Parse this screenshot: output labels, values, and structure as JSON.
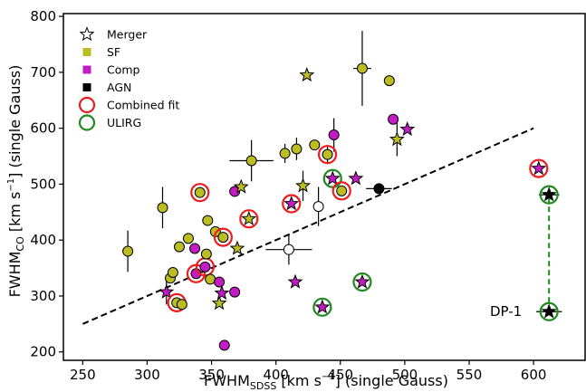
{
  "chart_data": {
    "type": "scatter",
    "xlabel_main": "FWHM",
    "xlabel_sub": "SDSS",
    "xlabel_unit_pre": " [km s",
    "xlabel_unit_exp": "−1",
    "xlabel_unit_post": "] (single Gauss)",
    "ylabel_main": "FWHM",
    "ylabel_sub": "CO",
    "ylabel_unit_pre": " [km s",
    "ylabel_unit_exp": "−1",
    "ylabel_unit_post": "] (single Gauss)",
    "xlim": [
      235,
      640
    ],
    "ylim": [
      185,
      805
    ],
    "xticks": [
      "250",
      "300",
      "350",
      "400",
      "450",
      "500",
      "550",
      "600"
    ],
    "yticks": [
      "200",
      "300",
      "400",
      "500",
      "600",
      "700",
      "800"
    ],
    "grid": false,
    "legend_position": "top-left",
    "legend": [
      {
        "label": "Merger",
        "marker": "star-open"
      },
      {
        "label": "SF",
        "marker": "square",
        "color": "#bcbd22"
      },
      {
        "label": "Comp",
        "marker": "square",
        "color": "#c51bc5"
      },
      {
        "label": "AGN",
        "marker": "square",
        "color": "#000000"
      },
      {
        "label": "Combined fit",
        "marker": "ring",
        "color": "#ee1c1c"
      },
      {
        "label": "ULIRG",
        "marker": "ring",
        "color": "#1f8a1f"
      }
    ],
    "colors": {
      "SF": "#bcbd22",
      "Comp": "#c51bc5",
      "AGN": "#000000",
      "combined": "#ee1c1c",
      "ulirg": "#1f8a1f",
      "open": "#ffffff"
    },
    "trend_line": {
      "x": [
        250,
        600
      ],
      "y": [
        250,
        600
      ],
      "style": "dashed"
    },
    "connector": {
      "x": 612,
      "y": [
        272,
        481
      ],
      "color": "#1f8a1f",
      "style": "dashed"
    },
    "annotation": {
      "text": "DP-1",
      "x": 612,
      "y": 272
    },
    "points": [
      {
        "x": 285,
        "y": 380,
        "cls": "SF",
        "m": "o",
        "xe": 0,
        "ye": 37
      },
      {
        "x": 312,
        "y": 458,
        "cls": "SF",
        "m": "o",
        "xe": 0,
        "ye": 37
      },
      {
        "x": 315,
        "y": 307,
        "cls": "Comp",
        "m": "*",
        "xe": 0,
        "ye": 22
      },
      {
        "x": 318,
        "y": 332,
        "cls": "SF",
        "m": "o",
        "xe": 0,
        "ye": 0
      },
      {
        "x": 320,
        "y": 342,
        "cls": "SF",
        "m": "o",
        "xe": 0,
        "ye": 0
      },
      {
        "x": 323,
        "y": 288,
        "cls": "SF",
        "m": "o",
        "xe": 0,
        "ye": 0,
        "ring": "combined"
      },
      {
        "x": 325,
        "y": 388,
        "cls": "SF",
        "m": "o",
        "xe": 0,
        "ye": 0
      },
      {
        "x": 327,
        "y": 285,
        "cls": "SF",
        "m": "o",
        "xe": 0,
        "ye": 0
      },
      {
        "x": 332,
        "y": 403,
        "cls": "SF",
        "m": "o",
        "xe": 0,
        "ye": 0
      },
      {
        "x": 337,
        "y": 385,
        "cls": "Comp",
        "m": "o",
        "xe": 0,
        "ye": 0
      },
      {
        "x": 338,
        "y": 340,
        "cls": "Comp",
        "m": "o",
        "xe": 0,
        "ye": 0,
        "ring": "combined"
      },
      {
        "x": 341,
        "y": 485,
        "cls": "SF",
        "m": "o",
        "xe": 0,
        "ye": 0,
        "ring": "combined"
      },
      {
        "x": 345,
        "y": 352,
        "cls": "Comp",
        "m": "o",
        "xe": 0,
        "ye": 0,
        "ring": "combined"
      },
      {
        "x": 346,
        "y": 375,
        "cls": "SF",
        "m": "o",
        "xe": 0,
        "ye": 0
      },
      {
        "x": 347,
        "y": 435,
        "cls": "SF",
        "m": "o",
        "xe": 0,
        "ye": 0
      },
      {
        "x": 349,
        "y": 330,
        "cls": "SF",
        "m": "o",
        "xe": 0,
        "ye": 0
      },
      {
        "x": 353,
        "y": 415,
        "cls": "SF",
        "m": "o",
        "xe": 0,
        "ye": 0
      },
      {
        "x": 356,
        "y": 287,
        "cls": "SF",
        "m": "*",
        "xe": 0,
        "ye": 0
      },
      {
        "x": 356,
        "y": 325,
        "cls": "Comp",
        "m": "o",
        "xe": 0,
        "ye": 0
      },
      {
        "x": 358,
        "y": 305,
        "cls": "Comp",
        "m": "*",
        "xe": 0,
        "ye": 0
      },
      {
        "x": 359,
        "y": 405,
        "cls": "SF",
        "m": "o",
        "xe": 0,
        "ye": 0,
        "ring": "combined"
      },
      {
        "x": 360,
        "y": 212,
        "cls": "Comp",
        "m": "o",
        "xe": 0,
        "ye": 0
      },
      {
        "x": 368,
        "y": 307,
        "cls": "Comp",
        "m": "o",
        "xe": 0,
        "ye": 0
      },
      {
        "x": 368,
        "y": 487,
        "cls": "Comp",
        "m": "o",
        "xe": 0,
        "ye": 0
      },
      {
        "x": 370,
        "y": 385,
        "cls": "SF",
        "m": "*",
        "xe": 0,
        "ye": 0
      },
      {
        "x": 373,
        "y": 495,
        "cls": "SF",
        "m": "*",
        "xe": 0,
        "ye": 0
      },
      {
        "x": 379,
        "y": 438,
        "cls": "SF",
        "m": "*",
        "xe": 0,
        "ye": 0,
        "ring": "combined"
      },
      {
        "x": 381,
        "y": 542,
        "cls": "SF",
        "m": "o",
        "xe": 17,
        "ye": 37
      },
      {
        "x": 407,
        "y": 555,
        "cls": "SF",
        "m": "o",
        "xe": 0,
        "ye": 17
      },
      {
        "x": 410,
        "y": 383,
        "cls": "open",
        "m": "o",
        "xe": 18,
        "ye": 27
      },
      {
        "x": 412,
        "y": 465,
        "cls": "Comp",
        "m": "*",
        "xe": 0,
        "ye": 0,
        "ring": "combined"
      },
      {
        "x": 415,
        "y": 325,
        "cls": "Comp",
        "m": "*",
        "xe": 0,
        "ye": 0
      },
      {
        "x": 416,
        "y": 563,
        "cls": "SF",
        "m": "o",
        "xe": 0,
        "ye": 20
      },
      {
        "x": 421,
        "y": 497,
        "cls": "SF",
        "m": "*",
        "xe": 0,
        "ye": 27
      },
      {
        "x": 424,
        "y": 695,
        "cls": "SF",
        "m": "*",
        "xe": 0,
        "ye": 0
      },
      {
        "x": 430,
        "y": 570,
        "cls": "SF",
        "m": "o",
        "xe": 0,
        "ye": 0
      },
      {
        "x": 433,
        "y": 460,
        "cls": "open",
        "m": "o",
        "xe": 0,
        "ye": 35
      },
      {
        "x": 436,
        "y": 280,
        "cls": "Comp",
        "m": "*",
        "xe": 0,
        "ye": 0,
        "ring": "ulirg"
      },
      {
        "x": 440,
        "y": 553,
        "cls": "SF",
        "m": "o",
        "xe": 0,
        "ye": 17,
        "ring": "combined"
      },
      {
        "x": 444,
        "y": 510,
        "cls": "Comp",
        "m": "*",
        "xe": 0,
        "ye": 0,
        "ring": "ulirg"
      },
      {
        "x": 445,
        "y": 588,
        "cls": "Comp",
        "m": "o",
        "xe": 0,
        "ye": 30
      },
      {
        "x": 451,
        "y": 488,
        "cls": "SF",
        "m": "o",
        "xe": 0,
        "ye": 0,
        "ring": "combined"
      },
      {
        "x": 462,
        "y": 510,
        "cls": "Comp",
        "m": "*",
        "xe": 0,
        "ye": 0
      },
      {
        "x": 467,
        "y": 325,
        "cls": "Comp",
        "m": "*",
        "xe": 0,
        "ye": 0,
        "ring": "ulirg"
      },
      {
        "x": 467,
        "y": 707,
        "cls": "SF",
        "m": "o",
        "xe": 7,
        "ye": 67
      },
      {
        "x": 480,
        "y": 492,
        "cls": "AGN",
        "m": "o",
        "xe": 10,
        "ye": 0
      },
      {
        "x": 488,
        "y": 685,
        "cls": "SF",
        "m": "o",
        "xe": 0,
        "ye": 0
      },
      {
        "x": 491,
        "y": 616,
        "cls": "Comp",
        "m": "o",
        "xe": 0,
        "ye": 0
      },
      {
        "x": 494,
        "y": 580,
        "cls": "SF",
        "m": "*",
        "xe": 0,
        "ye": 30
      },
      {
        "x": 502,
        "y": 598,
        "cls": "Comp",
        "m": "*",
        "xe": 0,
        "ye": 0
      },
      {
        "x": 604,
        "y": 528,
        "cls": "Comp",
        "m": "*",
        "xe": 0,
        "ye": 0,
        "ring": "combined"
      },
      {
        "x": 612,
        "y": 481,
        "cls": "AGN",
        "m": "*",
        "xe": 8,
        "ye": 0,
        "ring": "ulirg"
      },
      {
        "x": 612,
        "y": 272,
        "cls": "AGN",
        "m": "*",
        "xe": 10,
        "ye": 0,
        "ring": "ulirg"
      }
    ]
  }
}
